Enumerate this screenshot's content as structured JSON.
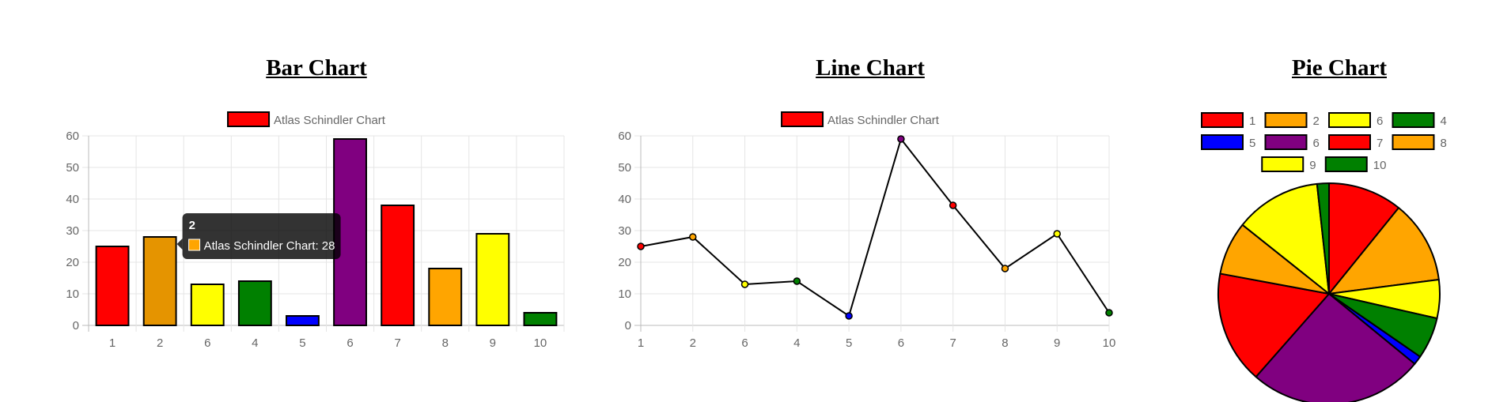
{
  "charts": {
    "bar": {
      "title": "Bar Chart"
    },
    "line": {
      "title": "Line Chart"
    },
    "pie": {
      "title": "Pie Chart"
    }
  },
  "tooltip": {
    "title": "2",
    "text": "Atlas Schindler Chart: 28",
    "color": "#FFA500"
  },
  "chart_data": [
    {
      "type": "bar",
      "title": "Bar Chart",
      "legend": {
        "position": "top",
        "entries": [
          "Atlas Schindler Chart"
        ]
      },
      "categories": [
        "1",
        "2",
        "6",
        "4",
        "5",
        "6",
        "7",
        "8",
        "9",
        "10"
      ],
      "series": [
        {
          "name": "Atlas Schindler Chart",
          "values": [
            25,
            28,
            13,
            14,
            3,
            59,
            38,
            18,
            29,
            4
          ],
          "colors": [
            "#FF0000",
            "#FFA500",
            "#FFFF00",
            "#008000",
            "#0000FF",
            "#800080",
            "#FF0000",
            "#FFA500",
            "#FFFF00",
            "#008000"
          ]
        }
      ],
      "ylim": [
        0,
        60
      ],
      "yticks": [
        0,
        10,
        20,
        30,
        40,
        50,
        60
      ],
      "grid": true
    },
    {
      "type": "line",
      "title": "Line Chart",
      "legend": {
        "position": "top",
        "entries": [
          "Atlas Schindler Chart"
        ]
      },
      "categories": [
        "1",
        "2",
        "6",
        "4",
        "5",
        "6",
        "7",
        "8",
        "9",
        "10"
      ],
      "series": [
        {
          "name": "Atlas Schindler Chart",
          "values": [
            25,
            28,
            13,
            14,
            3,
            59,
            38,
            18,
            29,
            4
          ],
          "colors": [
            "#FF0000",
            "#FFA500",
            "#FFFF00",
            "#008000",
            "#0000FF",
            "#800080",
            "#FF0000",
            "#FFA500",
            "#FFFF00",
            "#008000"
          ],
          "line_color": "#000000"
        }
      ],
      "ylim": [
        0,
        60
      ],
      "yticks": [
        0,
        10,
        20,
        30,
        40,
        50,
        60
      ],
      "grid": true
    },
    {
      "type": "pie",
      "title": "Pie Chart",
      "legend": {
        "position": "top"
      },
      "categories": [
        "1",
        "2",
        "6",
        "4",
        "5",
        "6",
        "7",
        "8",
        "9",
        "10"
      ],
      "values": [
        25,
        28,
        13,
        14,
        3,
        59,
        38,
        18,
        29,
        4
      ],
      "colors": [
        "#FF0000",
        "#FFA500",
        "#FFFF00",
        "#008000",
        "#0000FF",
        "#800080",
        "#FF0000",
        "#FFA500",
        "#FFFF00",
        "#008000"
      ]
    }
  ]
}
